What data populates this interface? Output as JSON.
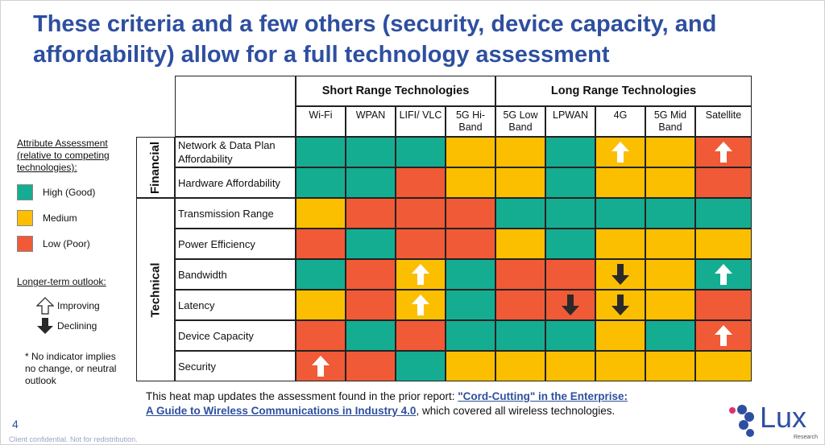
{
  "title": "These criteria and a few others (security, device capacity, and affordability) allow for a full technology assessment",
  "colors": {
    "high": "#15ad91",
    "medium": "#fcbf00",
    "low": "#f05a36",
    "title": "#2e4fa0"
  },
  "legend": {
    "title": "Attribute Assessment (relative to competing technologies):",
    "items": [
      {
        "label": "High (Good)",
        "color": "#15ad91"
      },
      {
        "label": "Medium",
        "color": "#fcbf00"
      },
      {
        "label": "Low (Poor)",
        "color": "#f05a36"
      }
    ],
    "outlook_title": "Longer-term outlook:",
    "improving": "Improving",
    "declining": "Declining",
    "note": "* No indicator implies no change, or neutral outlook"
  },
  "chart_data": {
    "type": "heatmap",
    "column_groups": [
      {
        "label": "Short Range Technologies",
        "span": 4
      },
      {
        "label": "Long Range Technologies",
        "span": 5
      }
    ],
    "columns": [
      "Wi-Fi",
      "WPAN",
      "LIFI/ VLC",
      "5G Hi-Band",
      "5G Low Band",
      "LPWAN",
      "4G",
      "5G Mid Band",
      "Satellite"
    ],
    "row_groups": [
      {
        "label": "Financial",
        "span": 2
      },
      {
        "label": "Technical",
        "span": 6
      }
    ],
    "rows": [
      "Network & Data Plan Affordability",
      "Hardware Affordability",
      "Transmission Range",
      "Power Efficiency",
      "Bandwidth",
      "Latency",
      "Device Capacity",
      "Security"
    ],
    "levels": {
      "H": "High (Good)",
      "M": "Medium",
      "L": "Low (Poor)"
    },
    "values": [
      [
        "H",
        "H",
        "H",
        "M",
        "M",
        "H",
        "M",
        "M",
        "L"
      ],
      [
        "H",
        "H",
        "L",
        "M",
        "M",
        "H",
        "M",
        "M",
        "L"
      ],
      [
        "M",
        "L",
        "L",
        "L",
        "H",
        "H",
        "H",
        "H",
        "H"
      ],
      [
        "L",
        "H",
        "L",
        "L",
        "M",
        "H",
        "M",
        "M",
        "M"
      ],
      [
        "H",
        "L",
        "M",
        "H",
        "L",
        "L",
        "M",
        "M",
        "H"
      ],
      [
        "M",
        "L",
        "M",
        "H",
        "L",
        "L",
        "M",
        "M",
        "L"
      ],
      [
        "L",
        "H",
        "L",
        "H",
        "H",
        "H",
        "M",
        "H",
        "L"
      ],
      [
        "L",
        "L",
        "H",
        "M",
        "M",
        "M",
        "M",
        "M",
        "M"
      ]
    ],
    "outlook": [
      {
        "row": 0,
        "col": 6,
        "dir": "up"
      },
      {
        "row": 0,
        "col": 8,
        "dir": "up"
      },
      {
        "row": 4,
        "col": 2,
        "dir": "up"
      },
      {
        "row": 4,
        "col": 6,
        "dir": "down"
      },
      {
        "row": 4,
        "col": 8,
        "dir": "up"
      },
      {
        "row": 5,
        "col": 2,
        "dir": "up"
      },
      {
        "row": 5,
        "col": 5,
        "dir": "down"
      },
      {
        "row": 5,
        "col": 6,
        "dir": "down"
      },
      {
        "row": 6,
        "col": 8,
        "dir": "up"
      },
      {
        "row": 7,
        "col": 0,
        "dir": "up"
      }
    ]
  },
  "footer": {
    "text_before": "This heat map updates the assessment found in the prior report: ",
    "link_1": "\"Cord-Cutting\" in the Enterprise:",
    "link_2": "A Guide to Wireless Communications in Industry 4.0",
    "text_after": ", which covered all wireless technologies."
  },
  "page_number": "4",
  "confidential": "Client confidential. Not for redistribution.",
  "logo": {
    "name": "Lux",
    "sub": "Research"
  }
}
